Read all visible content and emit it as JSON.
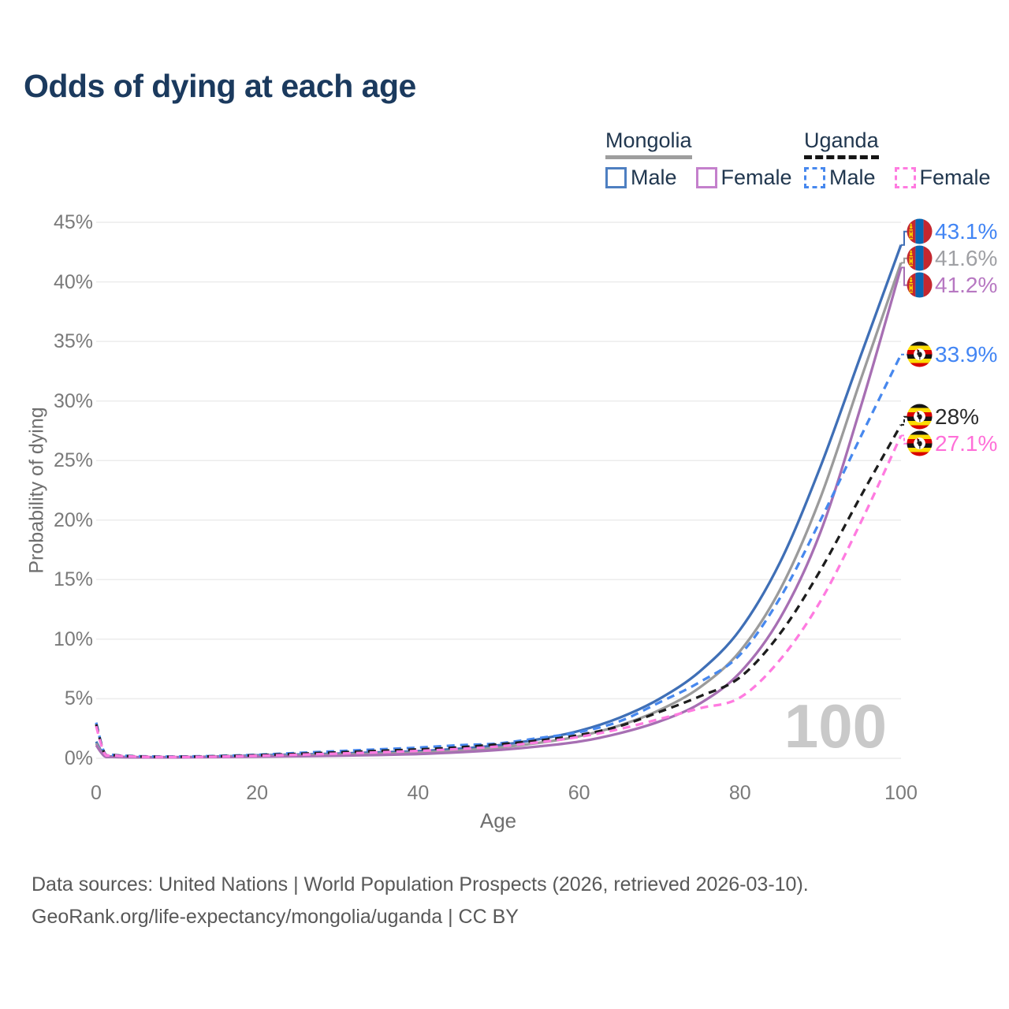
{
  "title": "Odds of dying at each age",
  "legend": {
    "groups": [
      {
        "country": "Mongolia",
        "line_style": "solid",
        "line_color": "#9e9e9e",
        "items": [
          {
            "label": "Male",
            "color": "#4e7fc1",
            "line_style": "solid"
          },
          {
            "label": "Female",
            "color": "#c480cc",
            "line_style": "solid"
          }
        ]
      },
      {
        "country": "Uganda",
        "line_style": "dashed",
        "line_color": "#151515",
        "items": [
          {
            "label": "Male",
            "color": "#4788ee",
            "line_style": "dashed"
          },
          {
            "label": "Female",
            "color": "#ff7be0",
            "line_style": "dashed"
          }
        ]
      }
    ]
  },
  "chart_data": {
    "type": "line",
    "title": "Odds of dying at each age",
    "xlabel": "Age",
    "ylabel": "Probability of dying",
    "xlim": [
      0,
      100
    ],
    "ylim": [
      0,
      45
    ],
    "x_ticks": [
      0,
      20,
      40,
      60,
      80,
      100
    ],
    "y_ticks": [
      0,
      5,
      10,
      15,
      20,
      25,
      30,
      35,
      40,
      45
    ],
    "y_tick_suffix": "%",
    "grid": "horizontal",
    "watermark": "100",
    "legend_position": "top-right",
    "ages": [
      0,
      1,
      2,
      5,
      10,
      15,
      20,
      25,
      30,
      35,
      40,
      45,
      50,
      55,
      60,
      65,
      70,
      75,
      80,
      85,
      90,
      95,
      100
    ],
    "series": [
      {
        "name": "Mongolia Male",
        "flag": "mn",
        "dashed": false,
        "color": "#3f6fb6",
        "end_label": "43.1%",
        "label_color": "#4285f4",
        "values": [
          1.4,
          0.25,
          0.15,
          0.1,
          0.1,
          0.15,
          0.25,
          0.32,
          0.4,
          0.5,
          0.6,
          0.8,
          1.1,
          1.6,
          2.3,
          3.4,
          5.0,
          7.3,
          10.8,
          16.5,
          24.5,
          33.8,
          43.1
        ]
      },
      {
        "name": "Mongolia",
        "flag": "mn",
        "dashed": false,
        "color": "#9b9b9b",
        "end_label": "41.6%",
        "label_color": "#9fa0a4",
        "values": [
          1.25,
          0.22,
          0.13,
          0.09,
          0.09,
          0.13,
          0.19,
          0.25,
          0.31,
          0.39,
          0.48,
          0.65,
          0.9,
          1.3,
          1.85,
          2.75,
          4.05,
          5.95,
          9.0,
          14.2,
          21.9,
          31.8,
          41.6
        ]
      },
      {
        "name": "Mongolia Female",
        "flag": "mn",
        "dashed": false,
        "color": "#a76fb3",
        "end_label": "41.2%",
        "label_color": "#b778c2",
        "values": [
          1.1,
          0.2,
          0.12,
          0.08,
          0.08,
          0.1,
          0.13,
          0.17,
          0.22,
          0.28,
          0.36,
          0.5,
          0.7,
          1.0,
          1.4,
          2.1,
          3.1,
          4.6,
          7.2,
          11.8,
          19.0,
          29.5,
          41.2
        ]
      },
      {
        "name": "Uganda Male",
        "flag": "ug",
        "dashed": true,
        "color": "#4788ee",
        "end_label": "33.9%",
        "label_color": "#4285f4",
        "values": [
          3.0,
          0.5,
          0.3,
          0.18,
          0.15,
          0.2,
          0.3,
          0.45,
          0.6,
          0.75,
          0.9,
          1.1,
          1.25,
          1.7,
          2.2,
          3.1,
          4.7,
          6.4,
          8.7,
          13.5,
          20.0,
          27.0,
          33.9
        ]
      },
      {
        "name": "Uganda",
        "flag": "ug",
        "dashed": true,
        "color": "#1d1d1d",
        "end_label": "28%",
        "label_color": "#2a2a2a",
        "values": [
          2.85,
          0.48,
          0.28,
          0.16,
          0.13,
          0.17,
          0.26,
          0.38,
          0.5,
          0.62,
          0.75,
          0.92,
          1.18,
          1.5,
          1.95,
          2.7,
          3.9,
          5.2,
          6.8,
          10.5,
          15.8,
          22.0,
          28.0
        ]
      },
      {
        "name": "Uganda Female",
        "flag": "ug",
        "dashed": true,
        "color": "#ff7be0",
        "end_label": "27.1%",
        "label_color": "#ff6fd8",
        "values": [
          2.7,
          0.45,
          0.26,
          0.14,
          0.11,
          0.14,
          0.21,
          0.3,
          0.4,
          0.5,
          0.62,
          0.78,
          1.0,
          1.35,
          1.8,
          2.45,
          3.3,
          4.2,
          5.1,
          8.3,
          13.2,
          19.8,
          27.1
        ]
      }
    ]
  },
  "flag_colors": {
    "mn": {
      "red": "#c4272f",
      "blue": "#0a66b2",
      "yellow": "#f9cf02"
    },
    "ug": {
      "black": "#141414",
      "yellow": "#fcdc04",
      "red": "#d90000",
      "white": "#ffffff",
      "crane": "#1a1a1a"
    }
  },
  "footer": {
    "line1": "Data sources: United Nations | World Population Prospects (2026, retrieved 2026-03-10).",
    "line2": "GeoRank.org/life-expectancy/mongolia/uganda | CC BY"
  }
}
